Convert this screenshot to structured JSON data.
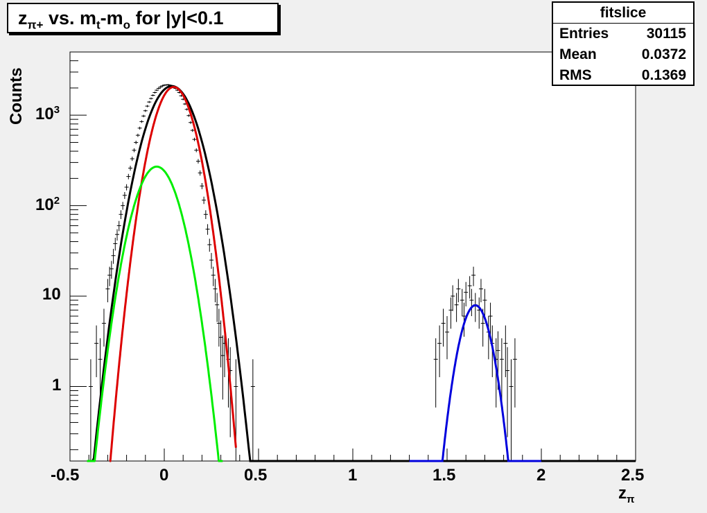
{
  "title": {
    "z": "z",
    "z_sub": "π+",
    "mid": " vs. m",
    "t_sub": "t",
    "dash": "-m",
    "o_sub": "o",
    "tail": " for |y|<0.1"
  },
  "stats": {
    "name": "fitslice",
    "rows": [
      {
        "label": "Entries",
        "value": "30115"
      },
      {
        "label": "Mean",
        "value": "0.0372"
      },
      {
        "label": "RMS",
        "value": "0.1369"
      }
    ]
  },
  "axes": {
    "ylabel": "Counts",
    "xlabel_main": "z",
    "xlabel_sub": "π",
    "xticks": [
      "-0.5",
      "0",
      "0.5",
      "1",
      "1.5",
      "2",
      "2.5"
    ],
    "yticks": [
      {
        "base": "1",
        "exp": ""
      },
      {
        "base": "10",
        "exp": ""
      },
      {
        "base": "10",
        "exp": "2"
      },
      {
        "base": "10",
        "exp": "3"
      }
    ]
  },
  "chart_data": {
    "type": "line",
    "xlim": [
      -0.5,
      2.5
    ],
    "ylim": [
      0.15,
      5000
    ],
    "log_y": true,
    "series": [
      {
        "color": "#000000",
        "kind": "gauss",
        "amp": 2100,
        "mu": 0.04,
        "sigma": 0.095,
        "range": [
          -0.41,
          2.5
        ]
      },
      {
        "color": "#dd0000",
        "kind": "gauss",
        "amp": 2050,
        "mu": 0.05,
        "sigma": 0.077,
        "range": [
          -0.29,
          0.38
        ]
      },
      {
        "color": "#00ee00",
        "kind": "gauss",
        "amp": 270,
        "mu": -0.04,
        "sigma": 0.085,
        "range": [
          -0.41,
          0.31
        ]
      },
      {
        "color": "#0000dd",
        "kind": "gauss",
        "amp": 7.9,
        "mu": 1.65,
        "sigma": 0.062,
        "range": [
          1.3,
          2.0
        ]
      }
    ],
    "points": [
      [
        -0.39,
        1.0
      ],
      [
        -0.36,
        3.0
      ],
      [
        -0.34,
        2.0
      ],
      [
        -0.32,
        5.0
      ],
      [
        -0.3,
        12
      ],
      [
        -0.29,
        17
      ],
      [
        -0.28,
        20
      ],
      [
        -0.27,
        28
      ],
      [
        -0.26,
        38
      ],
      [
        -0.25,
        48
      ],
      [
        -0.24,
        60
      ],
      [
        -0.23,
        80
      ],
      [
        -0.22,
        100
      ],
      [
        -0.21,
        130
      ],
      [
        -0.2,
        160
      ],
      [
        -0.19,
        210
      ],
      [
        -0.18,
        260
      ],
      [
        -0.17,
        330
      ],
      [
        -0.16,
        410
      ],
      [
        -0.15,
        500
      ],
      [
        -0.14,
        600
      ],
      [
        -0.13,
        720
      ],
      [
        -0.12,
        850
      ],
      [
        -0.11,
        980
      ],
      [
        -0.1,
        1120
      ],
      [
        -0.09,
        1260
      ],
      [
        -0.08,
        1400
      ],
      [
        -0.07,
        1530
      ],
      [
        -0.06,
        1660
      ],
      [
        -0.05,
        1780
      ],
      [
        -0.04,
        1890
      ],
      [
        -0.03,
        1980
      ],
      [
        -0.02,
        2050
      ],
      [
        -0.01,
        2110
      ],
      [
        0.0,
        2150
      ],
      [
        0.01,
        2160
      ],
      [
        0.02,
        2170
      ],
      [
        0.03,
        2150
      ],
      [
        0.04,
        2100
      ],
      [
        0.05,
        2050
      ],
      [
        0.06,
        1980
      ],
      [
        0.07,
        1890
      ],
      [
        0.08,
        1780
      ],
      [
        0.09,
        1640
      ],
      [
        0.1,
        1500
      ],
      [
        0.11,
        1330
      ],
      [
        0.12,
        1160
      ],
      [
        0.13,
        990
      ],
      [
        0.14,
        830
      ],
      [
        0.15,
        680
      ],
      [
        0.16,
        540
      ],
      [
        0.17,
        410
      ],
      [
        0.18,
        310
      ],
      [
        0.19,
        230
      ],
      [
        0.2,
        165
      ],
      [
        0.21,
        115
      ],
      [
        0.22,
        80
      ],
      [
        0.23,
        55
      ],
      [
        0.24,
        37
      ],
      [
        0.25,
        25
      ],
      [
        0.26,
        17
      ],
      [
        0.27,
        12
      ],
      [
        0.28,
        8
      ],
      [
        0.29,
        5
      ],
      [
        0.3,
        3.5
      ],
      [
        0.31,
        2.2
      ],
      [
        0.32,
        3
      ],
      [
        0.34,
        2
      ],
      [
        0.35,
        1.5
      ],
      [
        0.38,
        1.0
      ],
      [
        0.47,
        1.0
      ],
      [
        1.44,
        2
      ],
      [
        1.46,
        3
      ],
      [
        1.48,
        5
      ],
      [
        1.5,
        4
      ],
      [
        1.52,
        7
      ],
      [
        1.53,
        10
      ],
      [
        1.55,
        8
      ],
      [
        1.56,
        12
      ],
      [
        1.58,
        9
      ],
      [
        1.59,
        6
      ],
      [
        1.6,
        11
      ],
      [
        1.62,
        13
      ],
      [
        1.63,
        9
      ],
      [
        1.64,
        17
      ],
      [
        1.65,
        8
      ],
      [
        1.67,
        7
      ],
      [
        1.68,
        12
      ],
      [
        1.69,
        5
      ],
      [
        1.7,
        9
      ],
      [
        1.72,
        4
      ],
      [
        1.73,
        6
      ],
      [
        1.74,
        3
      ],
      [
        1.76,
        2
      ],
      [
        1.77,
        2.5
      ],
      [
        1.79,
        2
      ],
      [
        1.81,
        3
      ],
      [
        1.82,
        1.5
      ],
      [
        1.84,
        1.0
      ],
      [
        1.86,
        2
      ]
    ]
  }
}
